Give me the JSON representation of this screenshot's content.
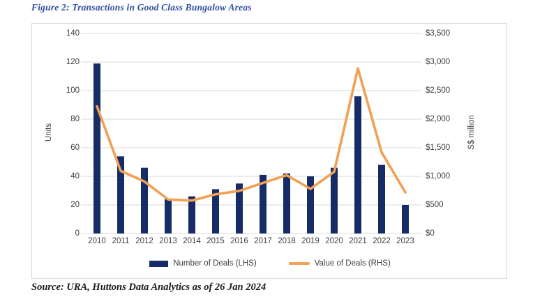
{
  "figure": {
    "title": "Figure 2: Transactions in Good Class Bungalow Areas",
    "source": "Source: URA, Huttons Data Analytics as of 26 Jan 2024"
  },
  "colors": {
    "bar": "#152C66",
    "line": "#F0A155",
    "grid": "#D9D9D9",
    "axis_text": "#404040",
    "title_text": "#2E4EA1"
  },
  "chart_data": {
    "type": "bar",
    "subtype": "combo-bar-line-dual-axis",
    "title": "Figure 2: Transactions in Good Class Bungalow Areas",
    "categories": [
      "2010",
      "2011",
      "2012",
      "2013",
      "2014",
      "2015",
      "2016",
      "2017",
      "2018",
      "2019",
      "2020",
      "2021",
      "2022",
      "2023"
    ],
    "series": [
      {
        "name": "Number of Deals (LHS)",
        "type": "bar",
        "axis": "left",
        "values": [
          119,
          54,
          46,
          24,
          26,
          31,
          35,
          41,
          42,
          40,
          46,
          96,
          48,
          20
        ]
      },
      {
        "name": "Value of Deals (RHS)",
        "type": "line",
        "axis": "right",
        "values": [
          2225,
          1095,
          910,
          595,
          575,
          685,
          745,
          885,
          1020,
          780,
          1080,
          2890,
          1420,
          720
        ]
      }
    ],
    "left_axis": {
      "title": "Units",
      "min": 0,
      "max": 140,
      "step": 20
    },
    "right_axis": {
      "title": "S$ million",
      "min": 0,
      "max": 3500,
      "step": 500,
      "prefix": "$"
    },
    "grid": "horizontal",
    "legend_position": "bottom"
  }
}
